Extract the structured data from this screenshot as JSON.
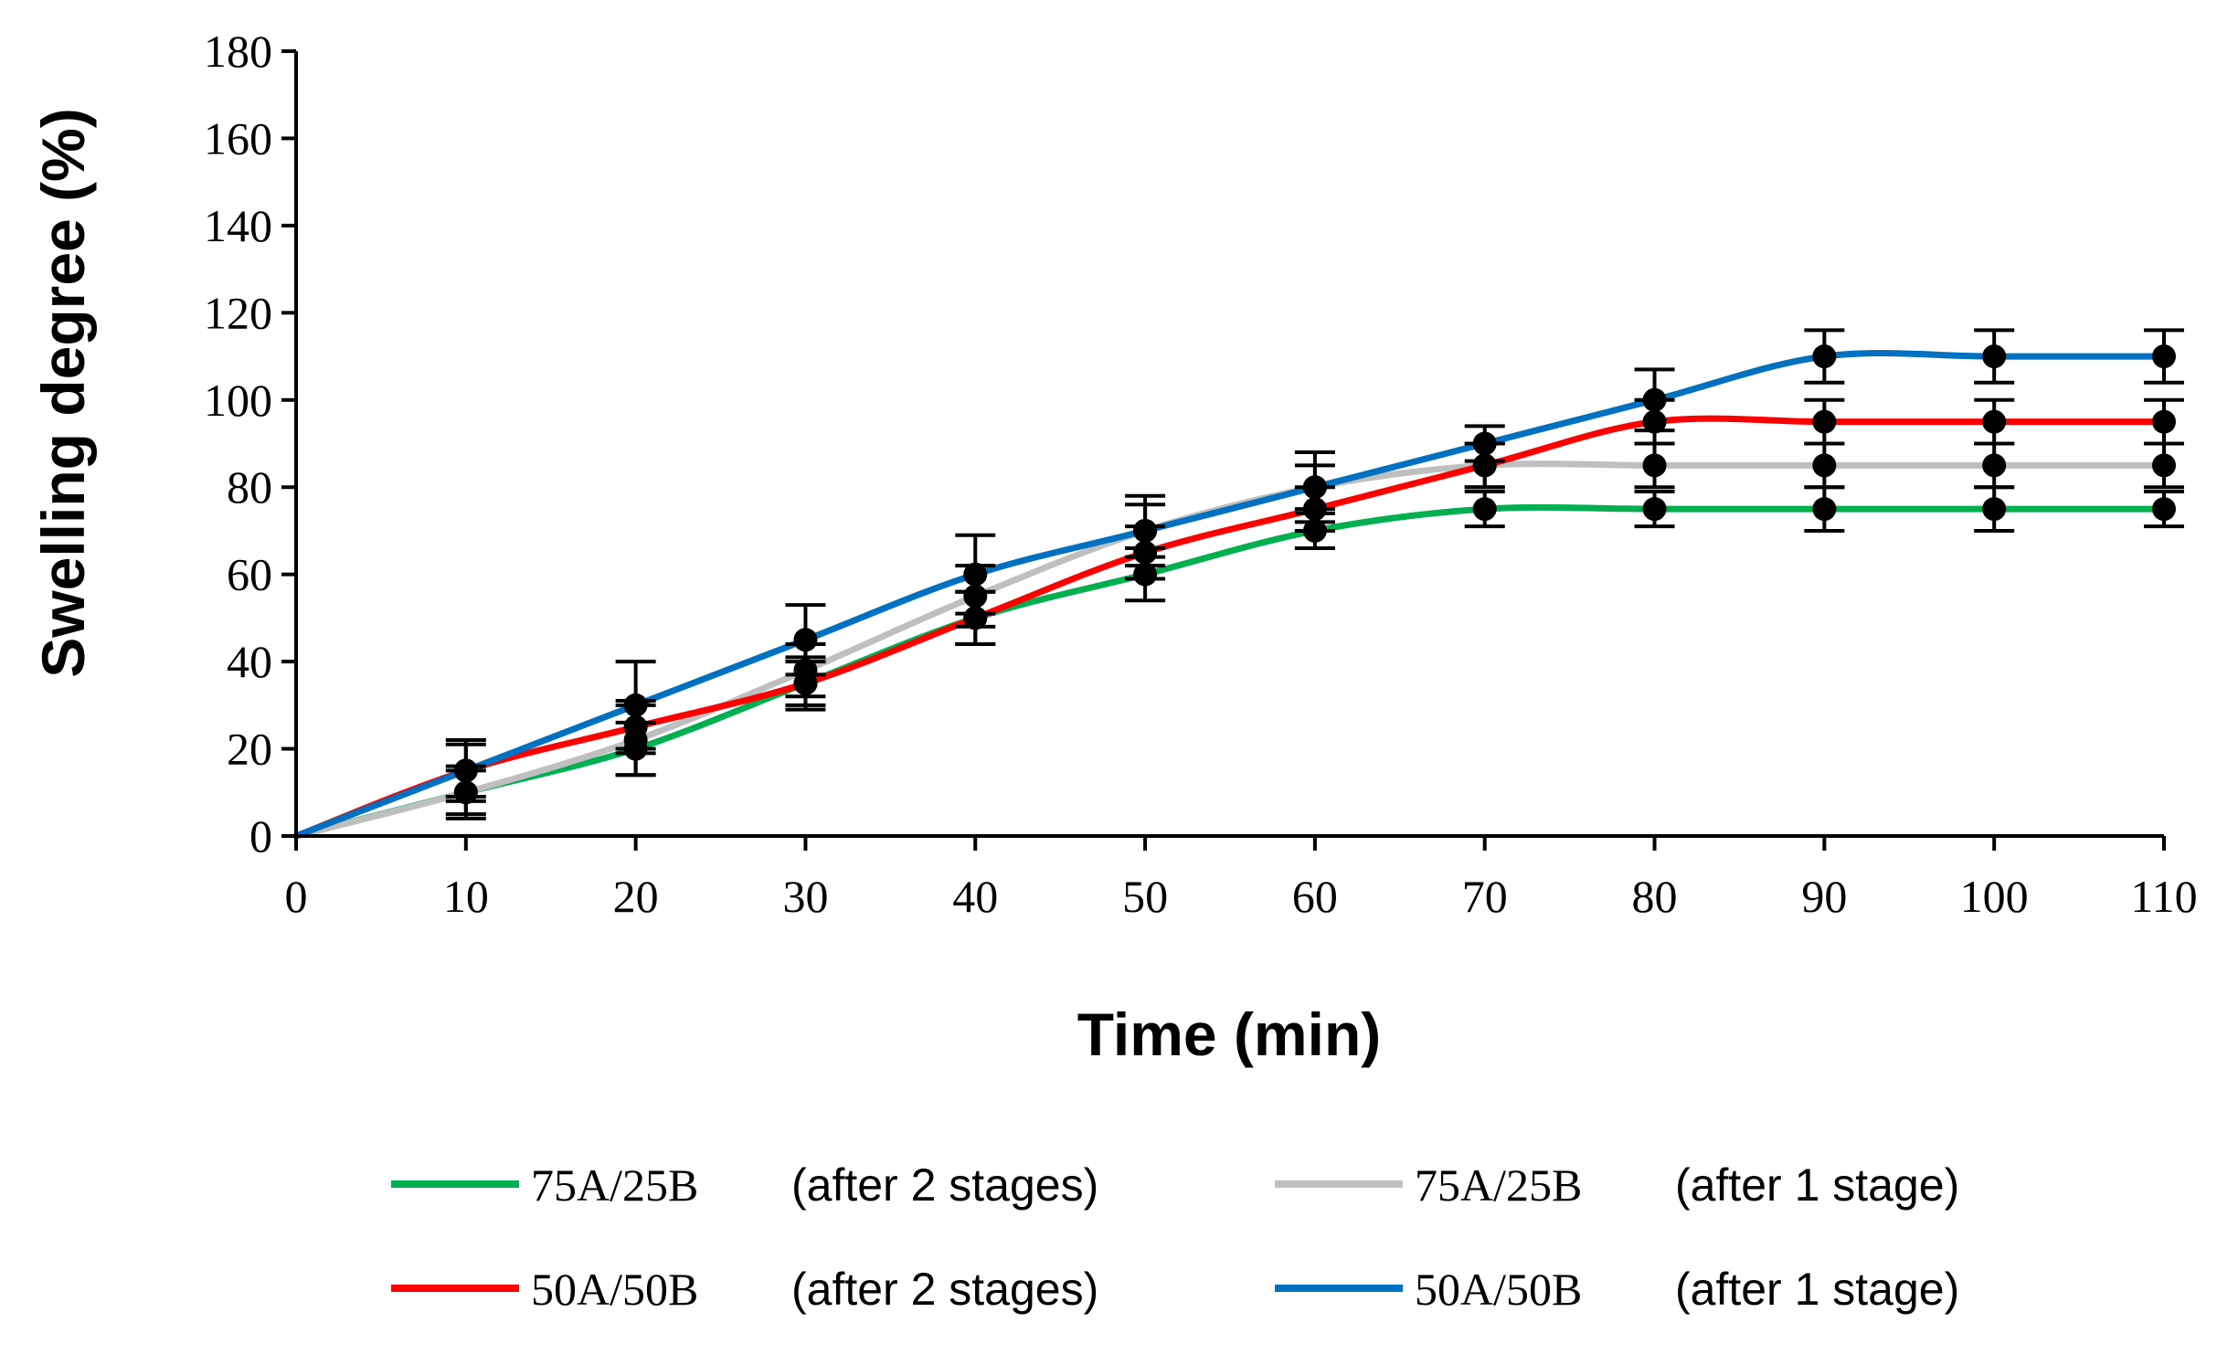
{
  "chart_data": {
    "type": "line",
    "title": "",
    "xlabel": "Time (min)",
    "ylabel": "Swelling degree (%)",
    "x": [
      0,
      10,
      20,
      30,
      40,
      50,
      60,
      70,
      80,
      90,
      100,
      110
    ],
    "xlim": [
      0,
      110
    ],
    "ylim": [
      0,
      180
    ],
    "x_ticks": [
      "0",
      "10",
      "20",
      "30",
      "40",
      "50",
      "60",
      "70",
      "80",
      "90",
      "100",
      "110"
    ],
    "y_ticks": [
      "0",
      "20",
      "40",
      "60",
      "80",
      "100",
      "120",
      "140",
      "160",
      "180"
    ],
    "grid": false,
    "legend_position": "bottom",
    "series": [
      {
        "name": "75A/25B",
        "note": "(after 2 stages)",
        "color": "#00b050",
        "values": [
          0,
          10,
          20,
          35,
          50,
          60,
          70,
          75,
          75,
          75,
          75,
          75
        ],
        "errors": [
          0,
          6,
          6,
          5,
          6,
          6,
          4,
          4,
          4,
          5,
          5,
          4
        ]
      },
      {
        "name": "75A/25B",
        "note": "(after 1 stage)",
        "color": "#bfbfbf",
        "values": [
          0,
          10,
          22,
          38,
          55,
          70,
          80,
          85,
          85,
          85,
          85,
          85
        ],
        "errors": [
          0,
          5,
          8,
          6,
          7,
          6,
          5,
          5,
          5,
          5,
          5,
          5
        ]
      },
      {
        "name": "50A/50B",
        "note": "(after 2 stages)",
        "color": "#ff0000",
        "values": [
          0,
          15,
          25,
          35,
          50,
          65,
          75,
          85,
          95,
          95,
          95,
          95
        ],
        "errors": [
          0,
          6,
          6,
          6,
          6,
          6,
          5,
          5,
          5,
          5,
          5,
          5
        ]
      },
      {
        "name": "50A/50B",
        "note": "(after 1 stage)",
        "color": "#0070c0",
        "values": [
          0,
          15,
          30,
          45,
          60,
          70,
          80,
          90,
          100,
          110,
          110,
          110
        ],
        "errors": [
          0,
          7,
          10,
          8,
          9,
          8,
          8,
          4,
          7,
          6,
          6,
          6
        ]
      }
    ]
  }
}
